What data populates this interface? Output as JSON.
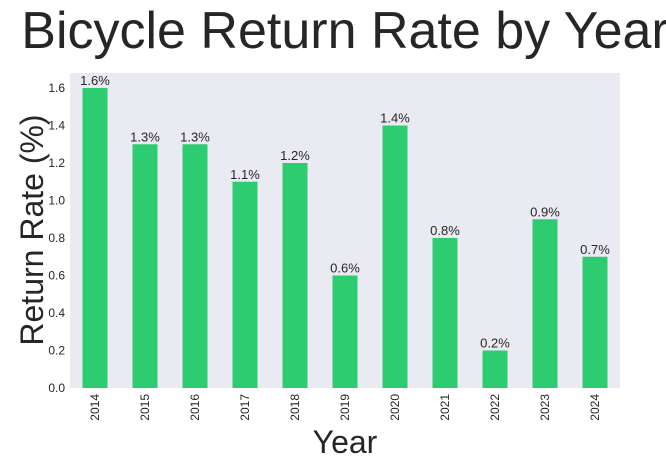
{
  "chart_data": {
    "type": "bar",
    "title": "Bicycle Return Rate by Year",
    "xlabel": "Year",
    "ylabel": "Return Rate (%)",
    "categories": [
      "2014",
      "2015",
      "2016",
      "2017",
      "2018",
      "2019",
      "2020",
      "2021",
      "2022",
      "2023",
      "2024"
    ],
    "values": [
      1.6,
      1.3,
      1.3,
      1.1,
      1.2,
      0.6,
      1.4,
      0.8,
      0.2,
      0.9,
      0.7
    ],
    "data_labels": [
      "1.6%",
      "1.3%",
      "1.3%",
      "1.1%",
      "1.2%",
      "0.6%",
      "1.4%",
      "0.8%",
      "0.2%",
      "0.9%",
      "0.7%"
    ],
    "yticks": [
      "0.0",
      "0.2",
      "0.4",
      "0.6",
      "0.8",
      "1.0",
      "1.2",
      "1.4",
      "1.6"
    ],
    "ylim": [
      0,
      1.68
    ],
    "grid": false,
    "bar_color": "#2ecc71",
    "plot_background": "#eaeaf2",
    "text_color": "#262626"
  }
}
